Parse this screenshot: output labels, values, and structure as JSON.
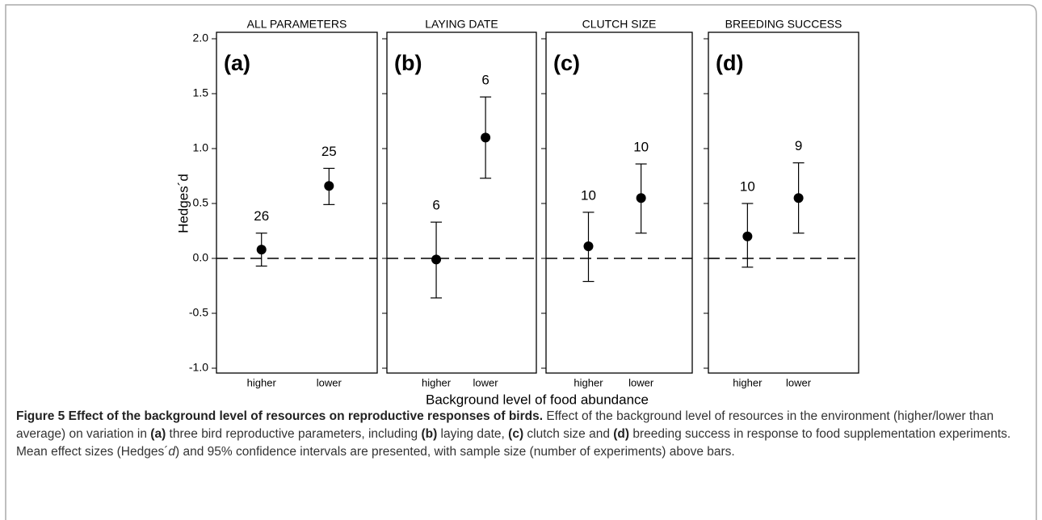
{
  "shared_axes": {
    "ylabel": "Hedges´d",
    "xlabel": "Background level of food abundance",
    "ylim": [
      -1,
      2
    ],
    "yticks": [
      {
        "value": -1,
        "label": "-1.0"
      },
      -0.5,
      {
        "value": 0,
        "label": "0.0"
      },
      0.5,
      {
        "value": 1,
        "label": "1.0"
      },
      1.5,
      {
        "value": 2,
        "label": "2.0"
      }
    ],
    "reference_line": 0
  },
  "chart_data": [
    {
      "type": "errorbar",
      "title": "ALL PARAMETERS",
      "panel_label": "(a)",
      "categories": [
        "higher",
        "lower"
      ],
      "values": [
        0.08,
        0.66
      ],
      "ci_low": [
        -0.07,
        0.49
      ],
      "ci_high": [
        0.23,
        0.82
      ],
      "sample_sizes": [
        26,
        25
      ],
      "color": "#000000"
    },
    {
      "type": "errorbar",
      "title": "LAYING DATE",
      "panel_label": "(b)",
      "categories": [
        "higher",
        "lower"
      ],
      "values": [
        -0.01,
        1.1
      ],
      "ci_low": [
        -0.36,
        0.73
      ],
      "ci_high": [
        0.33,
        1.47
      ],
      "sample_sizes": [
        6,
        6
      ],
      "color": "#000000"
    },
    {
      "type": "errorbar",
      "title": "CLUTCH SIZE",
      "panel_label": "(c)",
      "categories": [
        "higher",
        "lower"
      ],
      "values": [
        0.11,
        0.55
      ],
      "ci_low": [
        -0.21,
        0.23
      ],
      "ci_high": [
        0.42,
        0.86
      ],
      "sample_sizes": [
        10,
        10
      ],
      "color": "#000000"
    },
    {
      "type": "errorbar",
      "title": "BREEDING SUCCESS",
      "panel_label": "(d)",
      "categories": [
        "higher",
        "lower"
      ],
      "values": [
        0.2,
        0.55
      ],
      "ci_low": [
        -0.08,
        0.23
      ],
      "ci_high": [
        0.5,
        0.87
      ],
      "sample_sizes": [
        10,
        9
      ],
      "color": "#000000"
    }
  ],
  "caption": {
    "label": "Figure 5",
    "title": "Effect of the background level of resources on reproductive responses of birds.",
    "segments": [
      "Effect of the background level of resources in the environment (higher/lower than average) on variation in ",
      "(a)",
      " three bird reproductive parameters, including ",
      "(b)",
      " laying date, ",
      "(c)",
      " clutch size and ",
      "(d)",
      " breeding success in response to food supplementation experiments. Mean effect sizes (Hedges´",
      "d",
      ") and 95% confidence intervals are presented, with sample size (number of experiments) above bars."
    ]
  }
}
